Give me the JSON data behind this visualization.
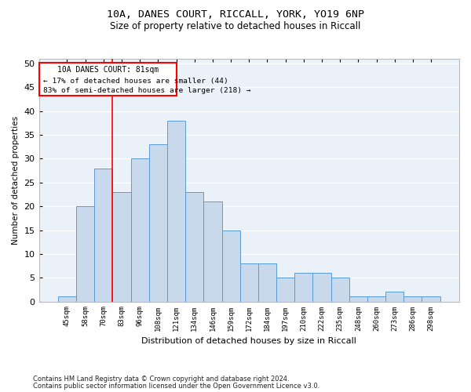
{
  "title1": "10A, DANES COURT, RICCALL, YORK, YO19 6NP",
  "title2": "Size of property relative to detached houses in Riccall",
  "xlabel": "Distribution of detached houses by size in Riccall",
  "ylabel": "Number of detached properties",
  "categories": [
    "45sqm",
    "58sqm",
    "70sqm",
    "83sqm",
    "96sqm",
    "108sqm",
    "121sqm",
    "134sqm",
    "146sqm",
    "159sqm",
    "172sqm",
    "184sqm",
    "197sqm",
    "210sqm",
    "222sqm",
    "235sqm",
    "248sqm",
    "260sqm",
    "273sqm",
    "286sqm",
    "298sqm"
  ],
  "values": [
    1,
    20,
    28,
    23,
    30,
    33,
    38,
    23,
    21,
    15,
    8,
    8,
    5,
    6,
    6,
    5,
    1,
    1,
    2,
    1,
    1
  ],
  "bar_color": "#c8d9ec",
  "bar_edge_color": "#5b9bd5",
  "background_color": "#eaf1f8",
  "grid_color": "#ffffff",
  "annotation_text_line1": "10A DANES COURT: 81sqm",
  "annotation_text_line2": "← 17% of detached houses are smaller (44)",
  "annotation_text_line3": "83% of semi-detached houses are larger (218) →",
  "red_line_x": 2.5,
  "ylim": [
    0,
    51
  ],
  "yticks": [
    0,
    5,
    10,
    15,
    20,
    25,
    30,
    35,
    40,
    45,
    50
  ],
  "footnote1": "Contains HM Land Registry data © Crown copyright and database right 2024.",
  "footnote2": "Contains public sector information licensed under the Open Government Licence v3.0."
}
